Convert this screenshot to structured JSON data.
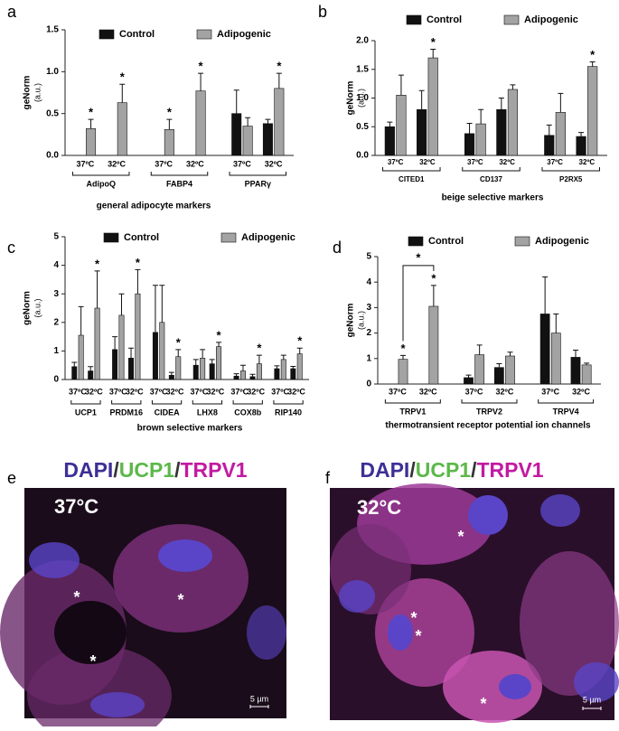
{
  "chart_data": [
    {
      "type": "bar",
      "panel": "a",
      "ylabel": "geNorm",
      "ylabel_unit": "(a.u.)",
      "xlabel": "general adipocyte markers",
      "categories": [
        "37ºC",
        "32ºC",
        "37ºC",
        "32ºC",
        "37ºC",
        "32ºC"
      ],
      "groups": [
        "AdipoQ",
        "FABP4",
        "PPARγ"
      ],
      "series": [
        {
          "name": "Control",
          "color": "#111111",
          "values": [
            null,
            null,
            null,
            null,
            0.5,
            0.38
          ],
          "errors": [
            null,
            null,
            null,
            null,
            0.28,
            0.05
          ],
          "markers": [
            null,
            null,
            null,
            null,
            null,
            null
          ]
        },
        {
          "name": "Adipogenic",
          "color": "#a3a3a3",
          "values": [
            0.32,
            0.63,
            0.31,
            0.77,
            0.35,
            0.8
          ],
          "errors": [
            0.11,
            0.22,
            0.12,
            0.21,
            0.1,
            0.18
          ],
          "markers": [
            "*",
            "*",
            "*",
            "*",
            null,
            "*"
          ]
        }
      ],
      "ylim": [
        0,
        1.5
      ],
      "yticks": [
        {
          "value": 0,
          "label": "0.0"
        },
        0.5,
        {
          "value": 1,
          "label": "1.0"
        },
        1.5
      ]
    },
    {
      "type": "bar",
      "panel": "b",
      "ylabel": "geNorm",
      "ylabel_unit": "(a.u.)",
      "xlabel": "beige selective markers",
      "categories": [
        "37ºC",
        "32ºC",
        "37ºC",
        "32ºC",
        "37ºC",
        "32ºC"
      ],
      "groups": [
        "CITED1",
        "CD137",
        "P2RX5"
      ],
      "series": [
        {
          "name": "Control",
          "color": "#111111",
          "values": [
            0.5,
            0.8,
            0.38,
            0.8,
            0.35,
            0.33
          ],
          "errors": [
            0.08,
            0.33,
            0.18,
            0.2,
            0.18,
            0.07
          ],
          "markers": [
            null,
            null,
            null,
            null,
            null,
            null
          ]
        },
        {
          "name": "Adipogenic",
          "color": "#a3a3a3",
          "values": [
            1.05,
            1.7,
            0.55,
            1.15,
            0.75,
            1.55
          ],
          "errors": [
            0.35,
            0.15,
            0.25,
            0.08,
            0.33,
            0.08
          ],
          "markers": [
            null,
            "*",
            null,
            null,
            null,
            "*"
          ]
        }
      ],
      "ylim": [
        0,
        2
      ],
      "yticks": [
        {
          "value": 0,
          "label": "0.0"
        },
        0.5,
        {
          "value": 1,
          "label": "1.0"
        },
        1.5,
        {
          "value": 2,
          "label": "2.0"
        }
      ]
    },
    {
      "type": "bar",
      "panel": "c",
      "ylabel": "geNorm",
      "ylabel_unit": "(a.u.)",
      "xlabel": "brown selective markers",
      "categories": [
        "37ºC",
        "32ºC",
        "37ºC",
        "32ºC",
        "37ºC",
        "32ºC",
        "37ºC",
        "32ºC",
        "37ºC",
        "32ºC",
        "37ºC",
        "32ºC"
      ],
      "groups": [
        "UCP1",
        "PRDM16",
        "CIDEA",
        "LHX8",
        "COX8b",
        "RIP140"
      ],
      "series": [
        {
          "name": "Control",
          "color": "#111111",
          "values": [
            0.45,
            0.3,
            1.05,
            0.75,
            1.65,
            0.15,
            0.5,
            0.55,
            0.12,
            0.1,
            0.38,
            0.38
          ],
          "errors": [
            0.15,
            0.15,
            0.45,
            0.35,
            1.65,
            0.1,
            0.2,
            0.15,
            0.08,
            0.08,
            0.1,
            0.08
          ],
          "markers": [
            null,
            null,
            null,
            null,
            null,
            null,
            null,
            null,
            null,
            null,
            null,
            null
          ]
        },
        {
          "name": "Adipogenic",
          "color": "#a3a3a3",
          "values": [
            1.55,
            2.5,
            2.25,
            3.0,
            2.0,
            0.8,
            0.75,
            1.15,
            0.3,
            0.55,
            0.7,
            0.9
          ],
          "errors": [
            1.0,
            1.3,
            0.75,
            0.85,
            1.3,
            0.25,
            0.3,
            0.15,
            0.2,
            0.3,
            0.15,
            0.2
          ],
          "markers": [
            null,
            "*",
            null,
            "*",
            null,
            "*",
            null,
            "*",
            null,
            "*",
            null,
            "*"
          ]
        }
      ],
      "ylim": [
        0,
        5
      ],
      "yticks": [
        0,
        1,
        2,
        3,
        4,
        5
      ]
    },
    {
      "type": "bar",
      "panel": "d",
      "ylabel": "geNorm",
      "ylabel_unit": "(a.u.)",
      "xlabel": "thermotransient receptor potential ion channels",
      "categories": [
        "37ºC",
        "32ºC",
        "37ºC",
        "32ºC",
        "37ºC",
        "32ºC"
      ],
      "groups": [
        "TRPV1",
        "TRPV2",
        "TRPV4"
      ],
      "series": [
        {
          "name": "Control",
          "color": "#111111",
          "values": [
            null,
            null,
            0.25,
            0.65,
            2.75,
            1.05
          ],
          "errors": [
            null,
            null,
            0.1,
            0.15,
            1.45,
            0.28
          ],
          "markers": [
            null,
            null,
            null,
            null,
            null,
            null
          ]
        },
        {
          "name": "Adipogenic",
          "color": "#a3a3a3",
          "values": [
            0.97,
            3.05,
            1.15,
            1.1,
            2.0,
            0.75
          ],
          "errors": [
            0.15,
            0.82,
            0.38,
            0.15,
            0.75,
            0.07
          ],
          "markers": [
            "*",
            "*",
            null,
            null,
            null,
            null
          ]
        }
      ],
      "comparisons": [
        {
          "label": "*",
          "categories": [
            0,
            1
          ]
        }
      ],
      "ylim": [
        0,
        5
      ],
      "yticks": [
        0,
        1,
        2,
        3,
        4,
        5
      ]
    }
  ],
  "images": [
    {
      "panel": "e",
      "title": [
        "DAPI",
        "/",
        "UCP1",
        "/",
        "TRPV1"
      ],
      "temperature": "37°C",
      "scale": "5 µm",
      "asterisks": [
        "*",
        "*",
        "*"
      ]
    },
    {
      "panel": "f",
      "title": [
        "DAPI",
        "/",
        "UCP1",
        "/",
        "TRPV1"
      ],
      "temperature": "32°C",
      "scale": "5 µm",
      "asterisks": [
        "*",
        "*",
        "*",
        "*"
      ]
    }
  ]
}
